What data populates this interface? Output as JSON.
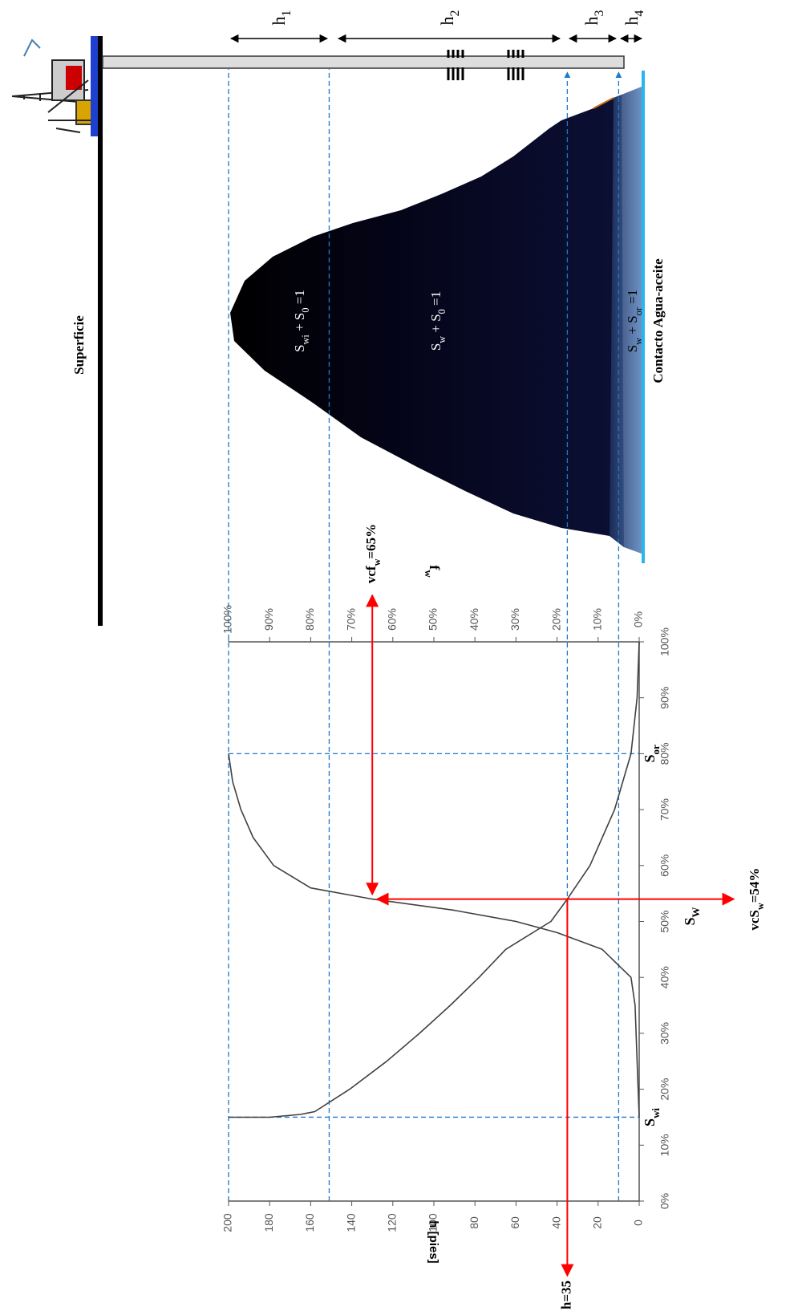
{
  "diagram": {
    "surface_label": "Superficie",
    "zones": [
      [
        "S",
        "wi",
        " + S",
        "0",
        " =1"
      ],
      [
        "S",
        "w",
        " + S",
        "0",
        " =1"
      ],
      [
        "S",
        "w",
        " + S",
        "or",
        " =1"
      ]
    ],
    "contact_label": "Contacto Agua-aceite",
    "thickness_labels": [
      [
        "h",
        "1"
      ],
      [
        "h",
        "2"
      ],
      [
        "h",
        "3"
      ],
      [
        "h",
        "4"
      ]
    ]
  },
  "chart_data": {
    "type": "line",
    "xlabel": [
      "S",
      "W"
    ],
    "ylabel": "h [pies]",
    "y2label": [
      "f",
      "w"
    ],
    "xlim": [
      0,
      100
    ],
    "xticks": [
      {
        "value": 0,
        "label": "0%"
      },
      {
        "value": 10,
        "label": "10%"
      },
      {
        "value": 20,
        "label": "20%"
      },
      {
        "value": 30,
        "label": "30%"
      },
      {
        "value": 40,
        "label": "40%"
      },
      {
        "value": 50,
        "label": "50%"
      },
      {
        "value": 60,
        "label": "60%"
      },
      {
        "value": 70,
        "label": "70%"
      },
      {
        "value": 80,
        "label": "80%"
      },
      {
        "value": 90,
        "label": "90%"
      },
      {
        "value": 100,
        "label": "100%"
      }
    ],
    "ylim": [
      0,
      200
    ],
    "yticks": [
      0,
      20,
      40,
      60,
      80,
      100,
      120,
      140,
      160,
      180,
      200
    ],
    "y2lim": [
      0,
      100
    ],
    "y2ticks": [
      {
        "value": 0,
        "label": "0%"
      },
      {
        "value": 10,
        "label": "10%"
      },
      {
        "value": 20,
        "label": "20%"
      },
      {
        "value": 30,
        "label": "30%"
      },
      {
        "value": 40,
        "label": "40%"
      },
      {
        "value": 50,
        "label": "50%"
      },
      {
        "value": 60,
        "label": "60%"
      },
      {
        "value": 70,
        "label": "70%"
      },
      {
        "value": 80,
        "label": "80%"
      },
      {
        "value": 90,
        "label": "90%"
      },
      {
        "value": 100,
        "label": "100%"
      }
    ],
    "series": [
      {
        "color": "#404040",
        "x": [
          15,
          15,
          15.5,
          16,
          20,
          25,
          30,
          35,
          40,
          45,
          50,
          54,
          60,
          70,
          80,
          90,
          100
        ],
        "values": [
          200,
          180,
          165,
          158,
          141,
          123,
          107,
          92,
          78,
          65,
          43,
          35,
          24,
          12,
          4,
          1,
          0
        ]
      },
      {
        "color": "#404040",
        "axis": "y2",
        "x": [
          15,
          25,
          35,
          40,
          45,
          48,
          50,
          52,
          54,
          56,
          60,
          65,
          70,
          75,
          80
        ],
        "values": [
          0,
          0.5,
          1,
          2,
          9,
          20,
          30,
          45,
          65,
          80,
          89,
          94,
          97,
          99,
          100
        ]
      }
    ],
    "markers": [
      {
        "label": [
          "S",
          "wi"
        ],
        "value": 15
      },
      {
        "label": [
          "S",
          "or"
        ],
        "value": 80
      }
    ],
    "h_levels": [
      200,
      151,
      35,
      10
    ],
    "annotation_color": "#ff0000",
    "annotations": [
      {
        "label": [
          "h=35"
        ],
        "value": 35
      },
      {
        "label": [
          "vcS",
          "w",
          "=54%"
        ],
        "value": 54
      },
      {
        "label": [
          "vcf",
          "w",
          "=65%"
        ],
        "value": 65
      }
    ]
  }
}
